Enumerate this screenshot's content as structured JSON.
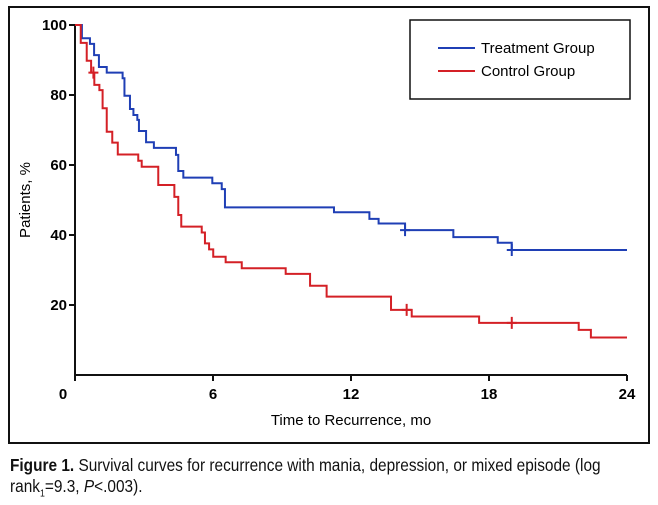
{
  "chart_data": {
    "type": "line",
    "step": true,
    "xlabel": "Time to Recurrence, mo",
    "ylabel": "Patients, %",
    "xlim": [
      0,
      24
    ],
    "ylim": [
      0,
      100
    ],
    "xticks": [
      "0",
      "6",
      "12",
      "18",
      "24"
    ],
    "yticks": [
      "20",
      "40",
      "60",
      "80",
      "100"
    ],
    "grid": false,
    "legend": "top-right",
    "series": [
      {
        "name": "Treatment Group",
        "color": "#1f3fb5",
        "x": [
          0,
          0.3,
          0.65,
          0.83,
          1.04,
          1.38,
          2.07,
          2.15,
          2.39,
          2.54,
          2.71,
          2.78,
          3.09,
          3.43,
          4.39,
          4.49,
          4.71,
          5.97,
          6.38,
          6.52,
          11.26,
          12.8,
          13.2,
          14.35,
          16.45,
          18.38,
          18.99,
          24
        ],
        "y": [
          100,
          96.2,
          94.6,
          91.4,
          88,
          86.4,
          84.8,
          79.8,
          76,
          74.3,
          72.9,
          69.7,
          66.5,
          64.9,
          62.9,
          58.3,
          56.4,
          54.8,
          53.1,
          47.9,
          46.5,
          44.6,
          43.3,
          41.4,
          39.4,
          37.8,
          35.7,
          35.7
        ],
        "censored_x": [
          14.35,
          18.99
        ]
      },
      {
        "name": "Control Group",
        "color": "#d42026",
        "x": [
          0,
          0.25,
          0.51,
          0.7,
          0.84,
          1.06,
          1.2,
          1.38,
          1.62,
          1.86,
          2.75,
          2.9,
          3.62,
          4.32,
          4.49,
          4.62,
          5.51,
          5.65,
          5.83,
          6.01,
          6.55,
          7.25,
          9.16,
          10.22,
          10.94,
          13.74,
          14.64,
          17.57,
          21.9,
          22.43,
          24
        ],
        "y": [
          100,
          94.9,
          89.8,
          86.4,
          82.9,
          81.4,
          76.2,
          69.5,
          66.4,
          63,
          61.2,
          59.5,
          54.3,
          50.9,
          45.7,
          42.4,
          40.7,
          37.6,
          35.9,
          33.8,
          32.2,
          30.5,
          28.9,
          25.5,
          22.4,
          18.6,
          16.7,
          14.9,
          12.9,
          10.7,
          10.7
        ],
        "censored_x": [
          0.8,
          14.42,
          18.99
        ]
      }
    ]
  },
  "caption": {
    "label": "Figure 1.",
    "text1": " Survival curves for recurrence with mania, depression, or mixed episode (log rank",
    "sub": "1",
    "text2": "=9.3, ",
    "p": "P",
    "text3": "<.003)."
  }
}
